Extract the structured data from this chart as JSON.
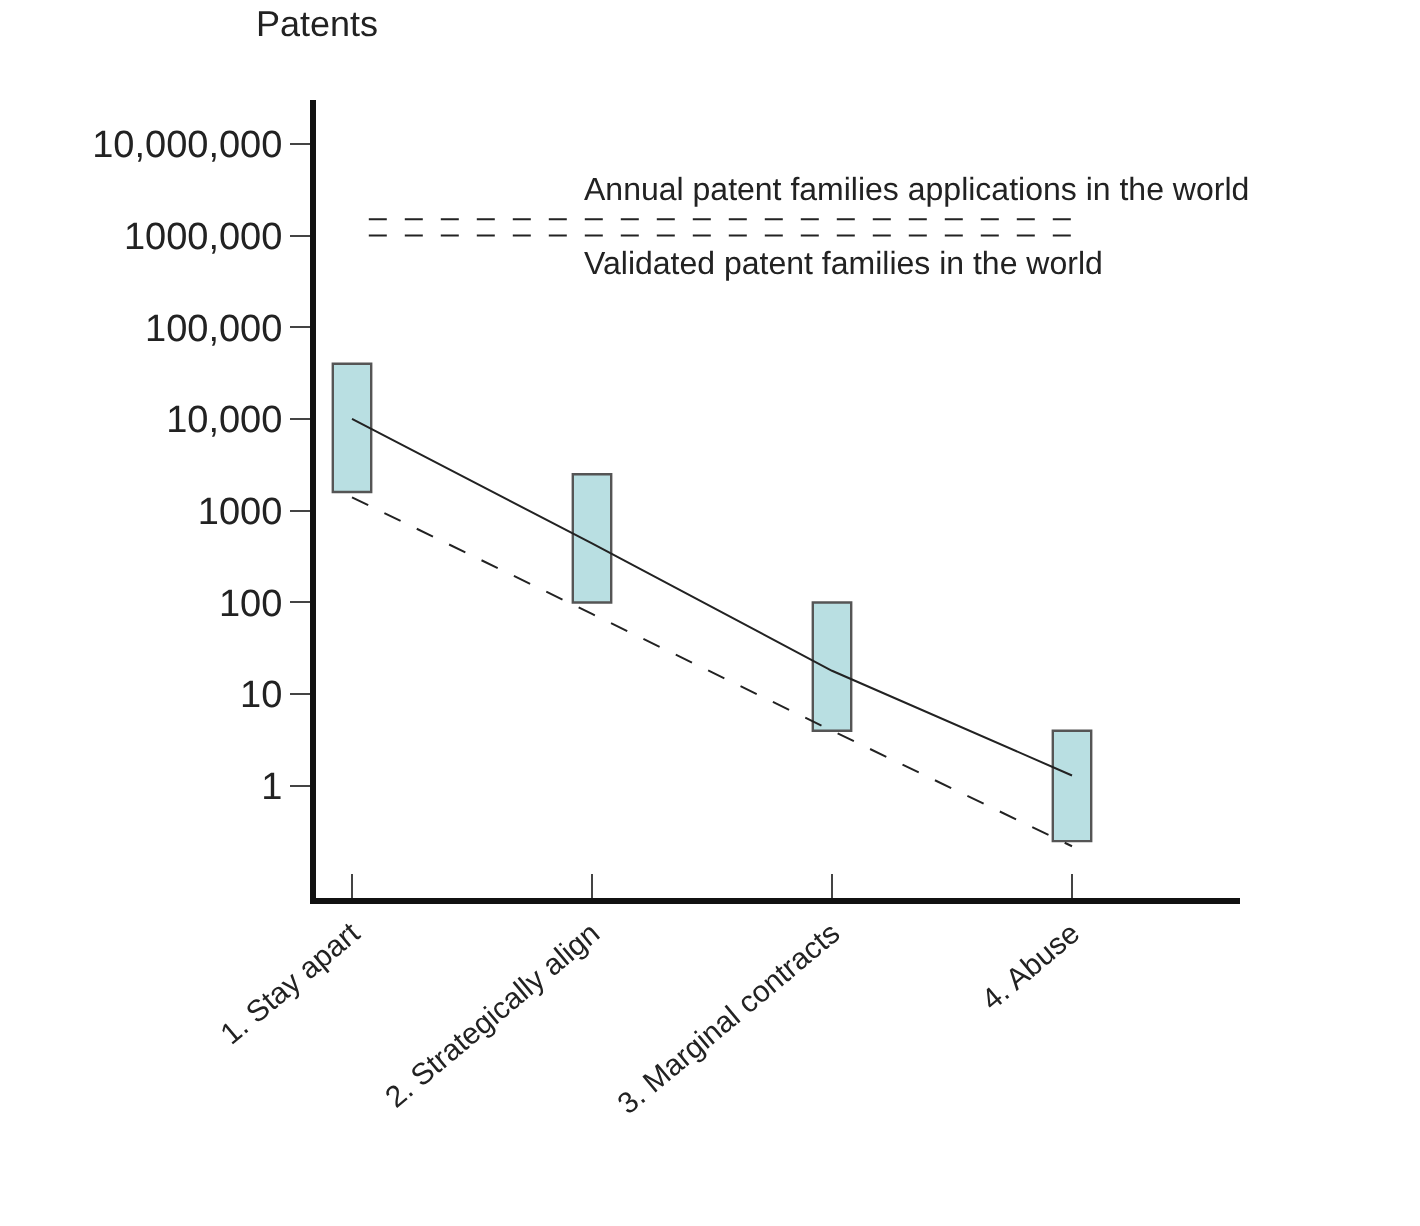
{
  "chart_data": {
    "type": "bar",
    "ylabel": "Patents",
    "categories": [
      "1. Stay apart",
      "2. Strategically align",
      "3. Marginal contracts",
      "4. Abuse"
    ],
    "log": true,
    "ylim": [
      0.06,
      30000000
    ],
    "yticks": [
      {
        "value": 1,
        "label": "1"
      },
      {
        "value": 10,
        "label": "10"
      },
      {
        "value": 100,
        "label": "100"
      },
      {
        "value": 1000,
        "label": "1000"
      },
      {
        "value": 10000,
        "label": "10,000"
      },
      {
        "value": 100000,
        "label": "100,000"
      },
      {
        "value": 1000000,
        "label": "1000,000"
      },
      {
        "value": 10000000,
        "label": "10,000,000"
      }
    ],
    "series": [
      {
        "type": "line",
        "color": "#222222",
        "line_style": "solid",
        "values": [
          10000,
          440,
          18,
          1.3
        ]
      },
      {
        "type": "line",
        "color": "#222222",
        "line_style": "dashed",
        "values": [
          1400,
          75,
          4,
          0.22
        ]
      },
      {
        "color": "#b9dfe2",
        "base": [
          1600,
          100,
          4,
          0.25
        ],
        "values": [
          38400,
          2400,
          96,
          3.75
        ]
      }
    ],
    "ref_lines": [
      {
        "axis": "y",
        "value": 1500000,
        "label": "Annual patent families applications in the world",
        "line_style": "dashed",
        "color": "#222222"
      },
      {
        "axis": "y",
        "value": 1000000,
        "label": "Validated patent families in the world",
        "line_style": "dashed",
        "color": "#222222"
      }
    ]
  }
}
